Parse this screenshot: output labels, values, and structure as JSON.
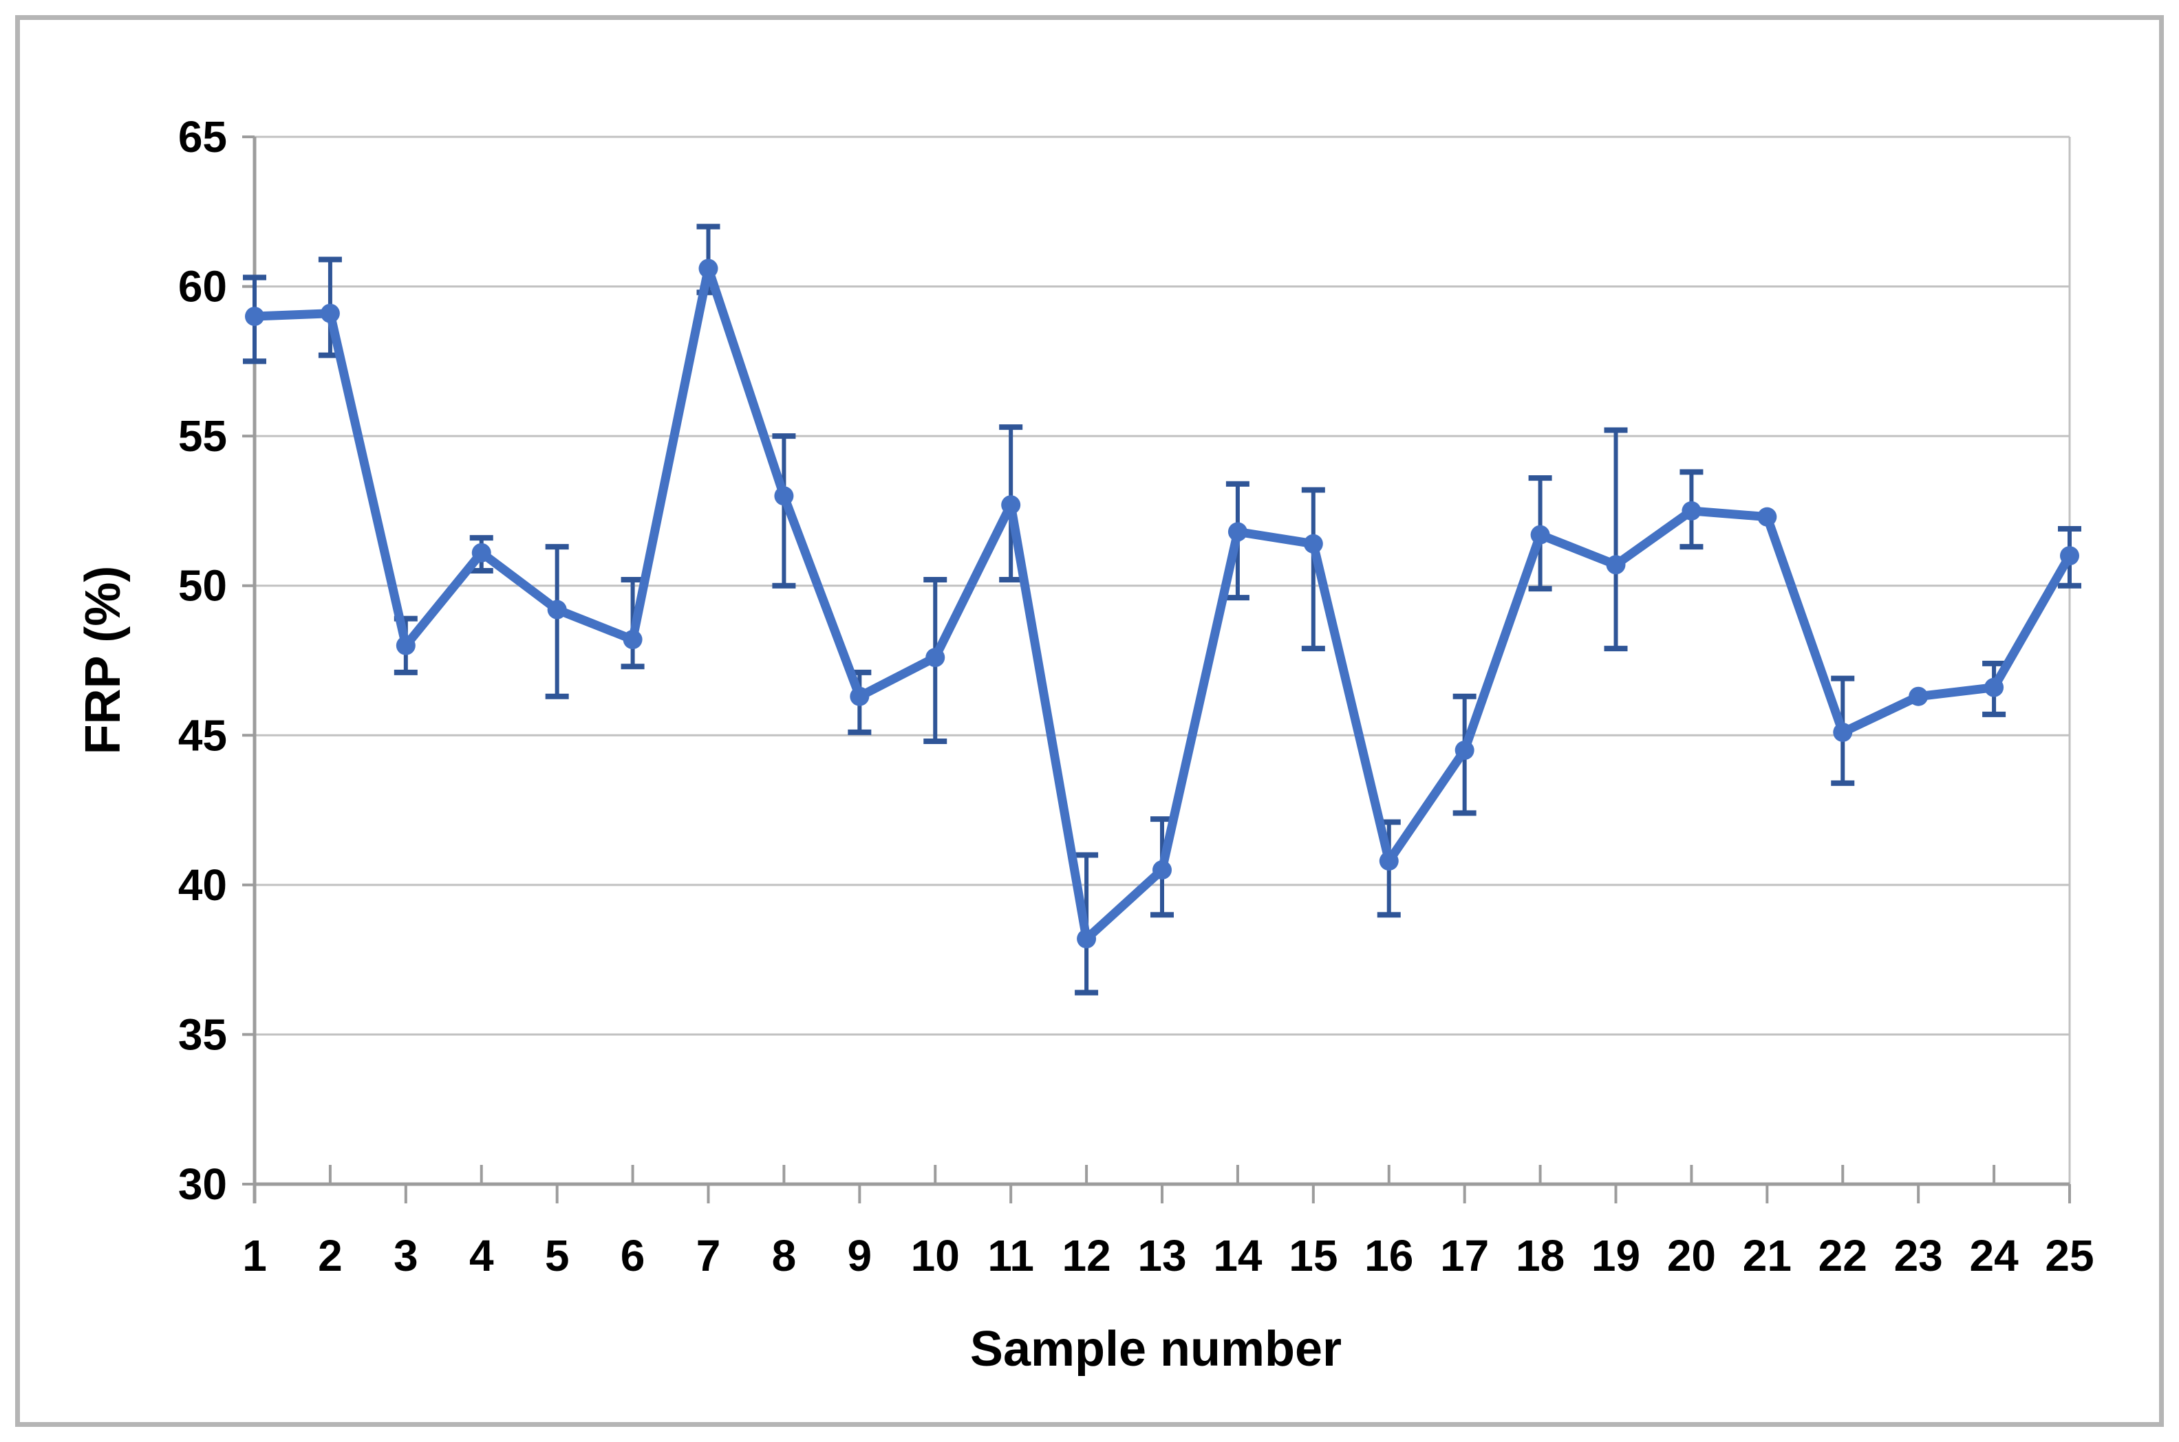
{
  "chart_data": {
    "type": "line",
    "title": "",
    "xlabel": "Sample number",
    "ylabel": "FRP (%)",
    "categories": [
      "1",
      "2",
      "3",
      "4",
      "5",
      "6",
      "7",
      "8",
      "9",
      "10",
      "11",
      "12",
      "13",
      "14",
      "15",
      "16",
      "17",
      "18",
      "19",
      "20",
      "21",
      "22",
      "23",
      "24",
      "25"
    ],
    "series": [
      {
        "name": "FRP",
        "values": [
          59.0,
          59.1,
          48.0,
          51.1,
          49.2,
          48.2,
          60.6,
          53.0,
          46.3,
          47.6,
          52.7,
          38.2,
          40.5,
          51.8,
          51.4,
          40.8,
          44.5,
          51.7,
          50.7,
          52.5,
          52.3,
          45.1,
          46.3,
          46.6,
          51.0
        ],
        "error_low": [
          57.5,
          57.7,
          47.1,
          50.5,
          46.3,
          47.3,
          59.8,
          50.0,
          45.1,
          44.8,
          50.2,
          36.4,
          39.0,
          49.6,
          47.9,
          39.0,
          42.4,
          49.9,
          47.9,
          51.3,
          null,
          43.4,
          null,
          45.7,
          50.0
        ],
        "error_high": [
          60.3,
          60.9,
          48.9,
          51.6,
          51.3,
          50.2,
          62.0,
          55.0,
          47.1,
          50.2,
          55.3,
          41.0,
          42.2,
          53.4,
          53.2,
          42.1,
          46.3,
          53.6,
          55.2,
          53.8,
          null,
          46.9,
          null,
          47.4,
          51.9
        ]
      }
    ],
    "ylim": [
      30,
      65
    ],
    "yticks": [
      30,
      35,
      40,
      45,
      50,
      55,
      60,
      65
    ],
    "grid": true,
    "legend": false,
    "marker": "circle",
    "colors": {
      "line": "#4472C4",
      "marker": "#4472C4",
      "error_bar": "#2F5597",
      "gridline": "#C1C1C1",
      "axis": "#9C9C9C",
      "text": "#000000",
      "frame": "#B5B5B5",
      "background": "#FFFFFF"
    }
  }
}
